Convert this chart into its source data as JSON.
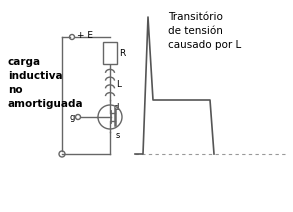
{
  "bg_color": "#ffffff",
  "text_carga": "carga\ninductiva\nno\namortiguada",
  "text_transitorio": "Transitório\nde tensión\ncausado por L",
  "label_E": "+ E",
  "label_R": "R",
  "label_L": "L",
  "label_d": "d",
  "label_g": "g",
  "label_s": "s",
  "circuit_color": "#666666",
  "waveform_color": "#555555",
  "dashed_color": "#999999",
  "fig_width": 2.93,
  "fig_height": 2.12
}
